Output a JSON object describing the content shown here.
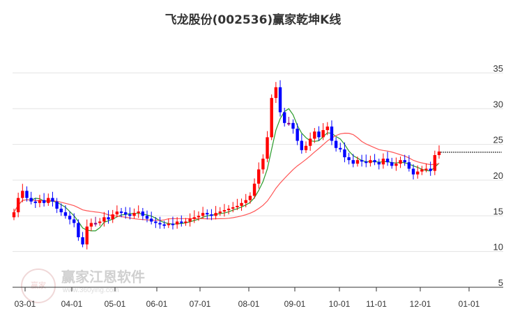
{
  "title": "飞龙股份(002536)赢家乾坤K线",
  "watermark": {
    "text": "赢家江恩软件",
    "url": "www.360ying.com",
    "seal": "赢家"
  },
  "chart_data": {
    "type": "candlestick",
    "title": "飞龙股份(002536)赢家乾坤K线",
    "ylim": [
      5,
      37
    ],
    "yticks": [
      35,
      30,
      25,
      20,
      15,
      10,
      5
    ],
    "xticks": [
      "03-01",
      "04-01",
      "05-01",
      "06-01",
      "07-01",
      "08-01",
      "09-01",
      "10-01",
      "11-01",
      "12-01",
      "01-01"
    ],
    "closes": [
      15.5,
      17.5,
      18.5,
      17.5,
      17.0,
      16.8,
      17.2,
      16.8,
      17.5,
      17.0,
      16.0,
      15.5,
      15.0,
      14.5,
      14.0,
      12.0,
      11.0,
      13.5,
      14.0,
      14.0,
      14.2,
      14.8,
      14.5,
      15.2,
      15.6,
      15.5,
      15.2,
      15.0,
      15.4,
      15.6,
      15.0,
      14.6,
      14.2,
      14.0,
      13.8,
      13.7,
      13.9,
      13.8,
      14.2,
      14.0,
      14.2,
      14.6,
      14.8,
      15.0,
      15.4,
      15.2,
      15.0,
      15.4,
      15.6,
      15.8,
      16.0,
      16.2,
      16.4,
      16.8,
      17.2,
      17.8,
      19.5,
      21.5,
      23.0,
      26.0,
      31.5,
      33.0,
      29.5,
      28.0,
      28.0,
      27.2,
      25.5,
      24.2,
      24.8,
      25.8,
      26.8,
      26.0,
      27.0,
      27.5,
      25.5,
      24.5,
      24.3,
      23.2,
      22.8,
      22.3,
      22.8,
      22.6,
      22.4,
      22.8,
      22.5,
      22.2,
      23.0,
      22.5,
      22.0,
      22.3,
      22.8,
      22.5,
      21.6,
      20.8,
      21.2,
      21.5,
      21.6,
      21.3,
      23.5,
      24.0
    ],
    "first_open": 14.8,
    "last_price": 23.9,
    "series": [
      {
        "name": "short MA",
        "color": "#2a9a2a",
        "window": 5
      },
      {
        "name": "long MA",
        "color": "#ff5555",
        "window": 20
      }
    ],
    "colors": {
      "up": "#ff0000",
      "down": "#0000ff",
      "mixed": "#800080",
      "grid": "#e3e3e3"
    }
  }
}
